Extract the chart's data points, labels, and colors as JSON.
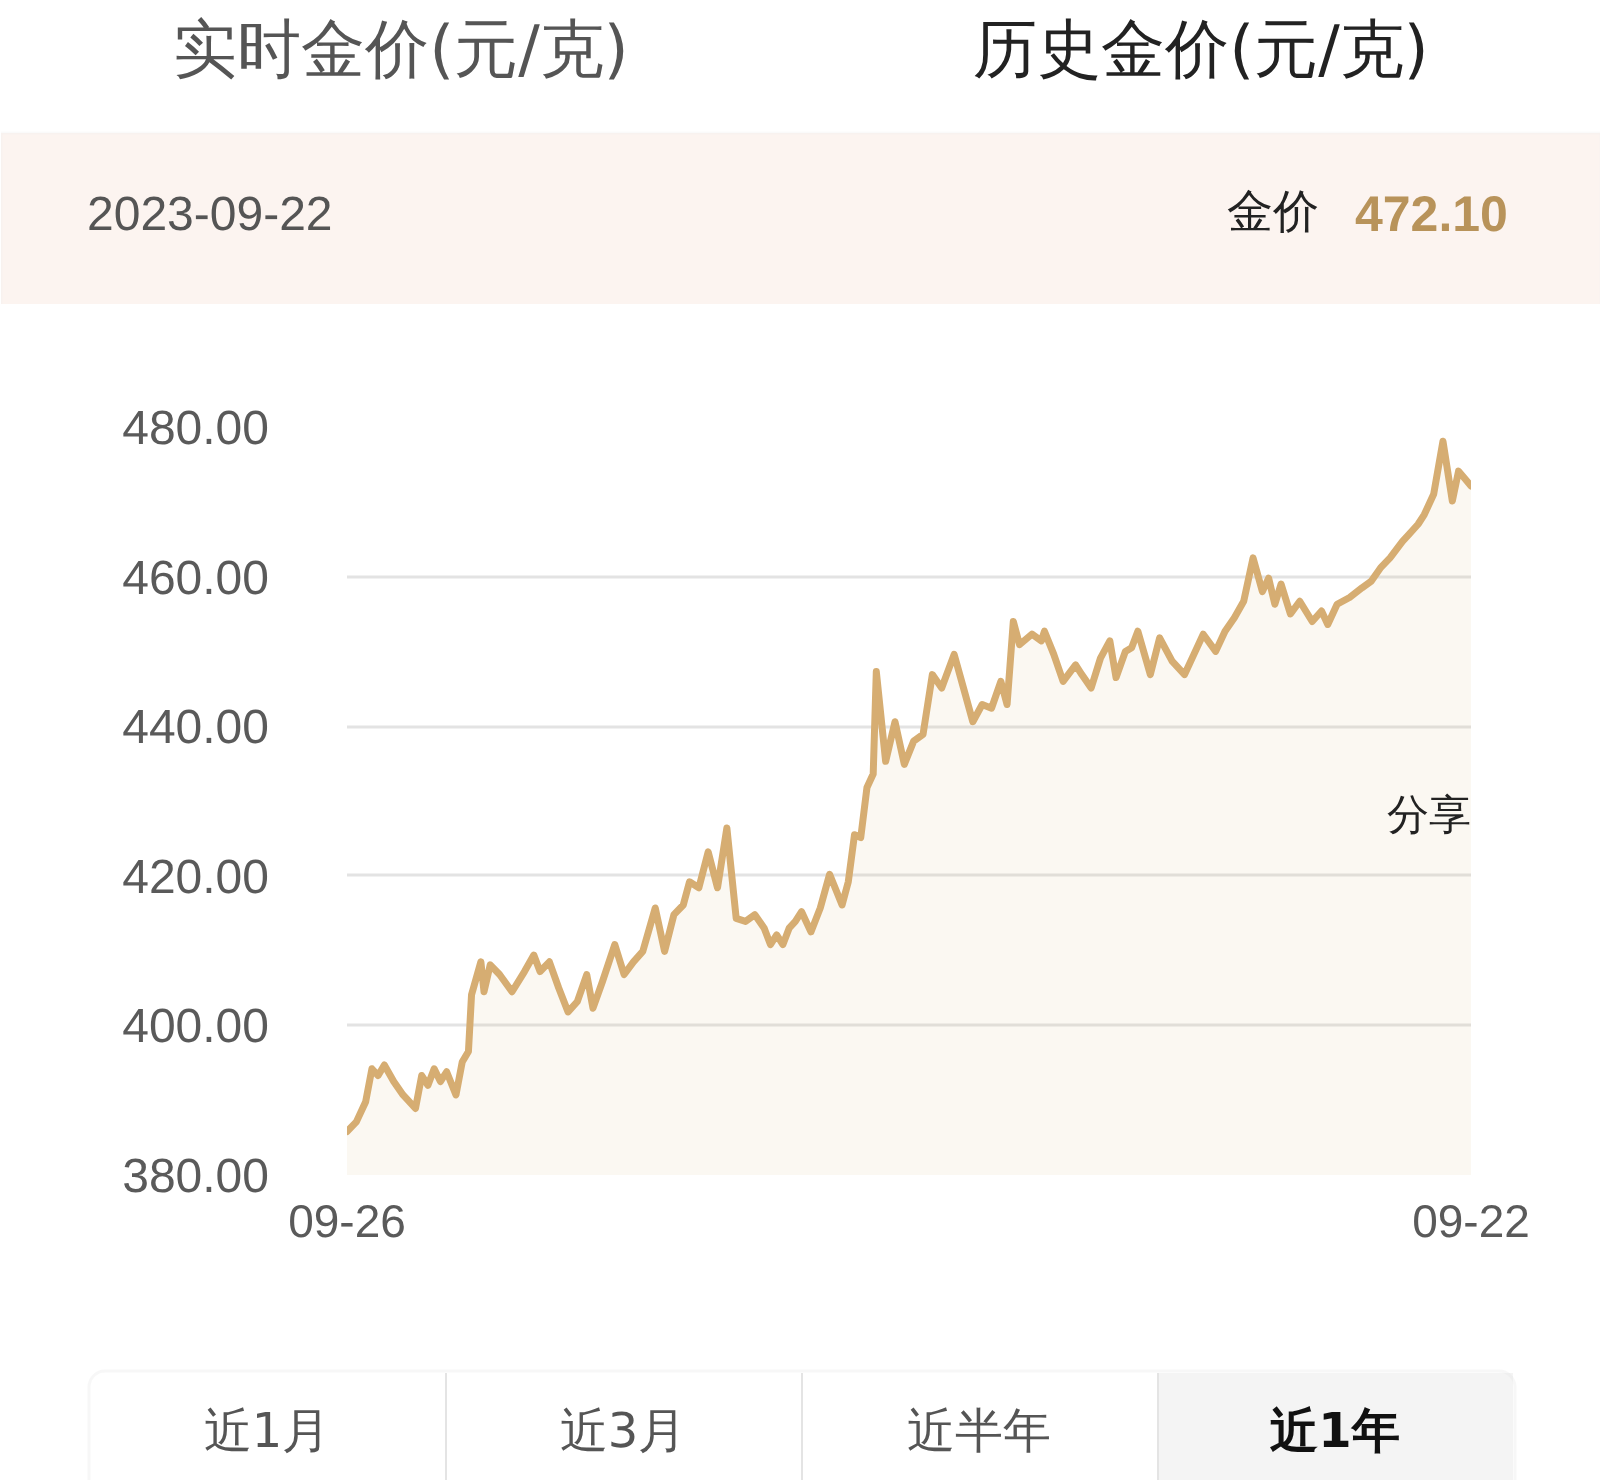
{
  "chart_data": {
    "type": "area",
    "title": "历史金价(元/克)",
    "annotations": [
      "实时金价(元/克)",
      "2023-09-22",
      "金价",
      "472.10",
      "分享",
      "近1月",
      "近3月",
      "近半年",
      "近1年"
    ],
    "x": [
      "2022-09-26",
      "2022-09-29",
      "2022-10-02",
      "2022-10-04",
      "2022-10-06",
      "2022-10-08",
      "2022-10-11",
      "2022-10-14",
      "2022-10-18",
      "2022-10-20",
      "2022-10-22",
      "2022-10-24",
      "2022-10-26",
      "2022-10-28",
      "2022-10-31",
      "2022-11-02",
      "2022-11-04",
      "2022-11-05",
      "2022-11-08",
      "2022-11-09",
      "2022-11-11",
      "2022-11-14",
      "2022-11-18",
      "2022-11-22",
      "2022-11-25",
      "2022-11-27",
      "2022-11-30",
      "2022-12-03",
      "2022-12-06",
      "2022-12-09",
      "2022-12-12",
      "2022-12-14",
      "2022-12-17",
      "2022-12-21",
      "2022-12-24",
      "2022-12-27",
      "2022-12-30",
      "2023-01-03",
      "2023-01-06",
      "2023-01-09",
      "2023-01-12",
      "2023-01-14",
      "2023-01-17",
      "2023-01-20",
      "2023-01-23",
      "2023-01-26",
      "2023-01-29",
      "2023-02-01",
      "2023-02-04",
      "2023-02-07",
      "2023-02-09",
      "2023-02-11",
      "2023-02-13",
      "2023-02-15",
      "2023-02-17",
      "2023-02-19",
      "2023-02-22",
      "2023-02-25",
      "2023-02-28",
      "2023-03-04",
      "2023-03-06",
      "2023-03-08",
      "2023-03-10",
      "2023-03-12",
      "2023-03-14",
      "2023-03-15",
      "2023-03-18",
      "2023-03-21",
      "2023-03-24",
      "2023-03-27",
      "2023-03-30",
      "2023-04-02",
      "2023-04-05",
      "2023-04-09",
      "2023-04-12",
      "2023-04-15",
      "2023-04-18",
      "2023-04-21",
      "2023-04-24",
      "2023-04-26",
      "2023-04-28",
      "2023-04-30",
      "2023-05-04",
      "2023-05-07",
      "2023-05-08",
      "2023-05-11",
      "2023-05-14",
      "2023-05-18",
      "2023-05-20",
      "2023-05-23",
      "2023-05-26",
      "2023-05-29",
      "2023-05-31",
      "2023-06-03",
      "2023-06-05",
      "2023-06-07",
      "2023-06-11",
      "2023-06-14",
      "2023-06-18",
      "2023-06-22",
      "2023-06-25",
      "2023-06-28",
      "2023-07-02",
      "2023-07-05",
      "2023-07-08",
      "2023-07-11",
      "2023-07-14",
      "2023-07-17",
      "2023-07-19",
      "2023-07-21",
      "2023-07-23",
      "2023-07-26",
      "2023-07-29",
      "2023-08-02",
      "2023-08-05",
      "2023-08-07",
      "2023-08-10",
      "2023-08-14",
      "2023-08-18",
      "2023-08-21",
      "2023-08-24",
      "2023-08-27",
      "2023-08-31",
      "2023-09-02",
      "2023-09-05",
      "2023-09-07",
      "2023-09-10",
      "2023-09-13",
      "2023-09-16",
      "2023-09-18",
      "2023-09-22"
    ],
    "series": [
      {
        "color": "#d6ad72",
        "values": [
          385.8,
          387.1,
          389.8,
          394.2,
          393.3,
          394.7,
          392.5,
          390.7,
          388.9,
          393.3,
          392.0,
          394.2,
          392.5,
          393.8,
          390.7,
          395.1,
          396.5,
          404.1,
          408.5,
          404.5,
          408.1,
          406.8,
          404.5,
          407.2,
          409.4,
          407.2,
          408.5,
          405.0,
          401.8,
          403.2,
          406.8,
          402.3,
          405.8,
          410.8,
          406.8,
          408.5,
          409.9,
          415.7,
          409.9,
          414.8,
          416.1,
          419.2,
          418.4,
          423.2,
          418.4,
          426.4,
          414.3,
          413.9,
          414.8,
          413.0,
          410.8,
          412.1,
          410.8,
          413.0,
          413.9,
          415.2,
          412.5,
          415.7,
          420.2,
          416.1,
          419.2,
          425.5,
          425.1,
          431.8,
          433.6,
          447.3,
          435.3,
          440.6,
          434.9,
          438.0,
          438.9,
          446.9,
          445.1,
          449.6,
          445.1,
          440.6,
          442.9,
          442.4,
          446.0,
          442.9,
          454.0,
          450.9,
          452.3,
          451.4,
          452.7,
          449.6,
          446.0,
          448.2,
          446.9,
          445.1,
          449.1,
          451.4,
          446.5,
          450.0,
          450.5,
          452.7,
          446.9,
          451.8,
          448.7,
          446.9,
          449.6,
          452.3,
          450.0,
          452.7,
          454.5,
          456.7,
          462.5,
          458.0,
          459.8,
          456.3,
          459.0,
          455.0,
          456.7,
          454.0,
          455.4,
          453.6,
          456.3,
          457.2,
          458.5,
          459.4,
          461.2,
          462.5,
          464.7,
          465.6,
          467.0,
          468.3,
          471.0,
          478.1,
          470.1,
          474.1,
          472.1
        ]
      }
    ],
    "xlim": [
      "2022-09-26",
      "2023-09-22"
    ],
    "xticks": [
      {
        "value": "2022-09-26",
        "label": "09-26"
      },
      {
        "value": "2023-09-22",
        "label": "09-22"
      }
    ],
    "ylim": [
      380,
      480
    ],
    "yticks": [
      {
        "value": 380,
        "label": "380.00"
      },
      {
        "value": 400,
        "label": "400.00"
      },
      {
        "value": 420,
        "label": "420.00"
      },
      {
        "value": 440,
        "label": "440.00"
      },
      {
        "value": 460,
        "label": "460.00"
      },
      {
        "value": 480,
        "label": "480.00"
      }
    ],
    "grid": "y"
  }
}
